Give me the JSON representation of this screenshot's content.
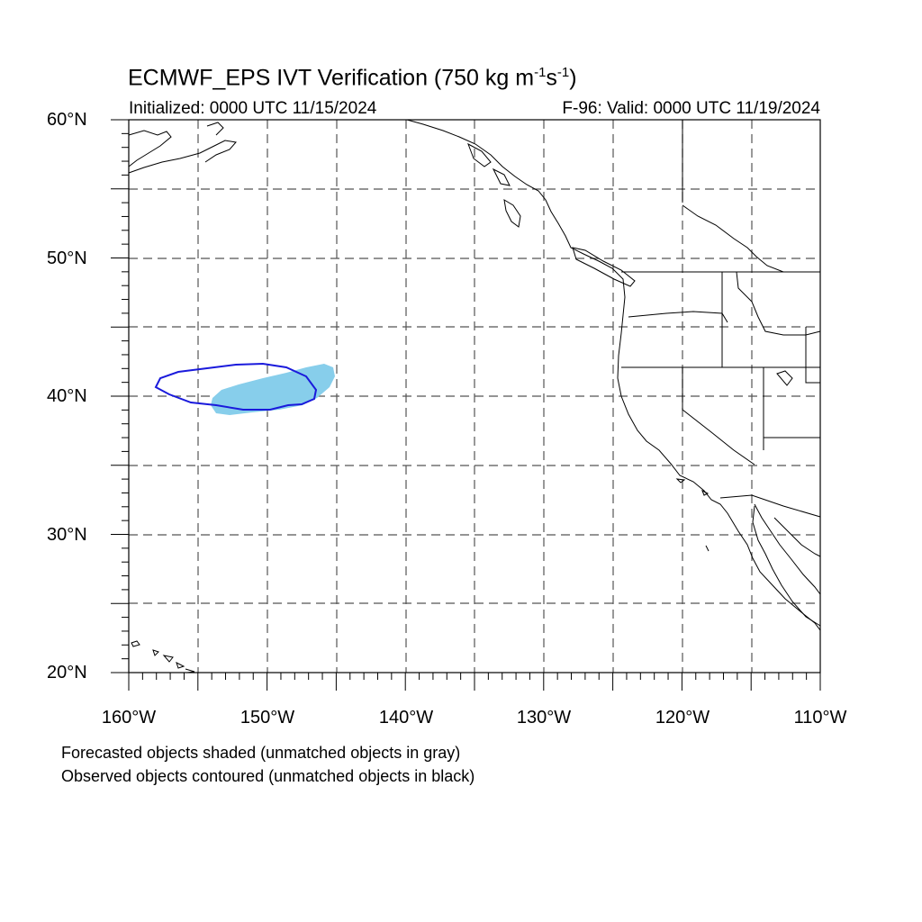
{
  "title": {
    "main": "ECMWF_EPS IVT Verification (750 kg m",
    "sup1": "-1",
    "mid": "s",
    "sup2": "-1",
    "end": ")"
  },
  "subtitle": {
    "initialized": "Initialized: 0000 UTC 11/15/2024",
    "valid": "F-96: Valid: 0000 UTC 11/19/2024"
  },
  "lat_labels": [
    "60°N",
    "50°N",
    "40°N",
    "30°N",
    "20°N"
  ],
  "lon_labels": [
    "160°W",
    "150°W",
    "140°W",
    "130°W",
    "120°W",
    "110°W"
  ],
  "footer": {
    "line1": "Forecasted objects shaded (unmatched objects in gray)",
    "line2": "Observed objects contoured (unmatched objects in black)"
  },
  "colors": {
    "forecast_fill": "#87ceeb",
    "observed_contour": "#1a1adc",
    "coastline": "#000000",
    "grid": "#555555"
  }
}
